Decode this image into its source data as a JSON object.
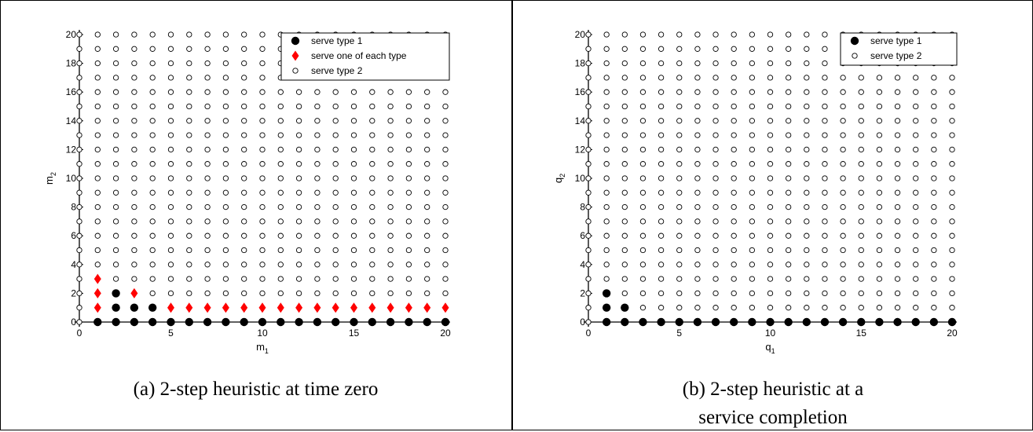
{
  "chart_data": [
    {
      "type": "scatter",
      "panel": "a",
      "caption": "(a) 2-step heuristic at time zero",
      "xlabel": "m",
      "xlabel_sub": "1",
      "ylabel": "m",
      "ylabel_sub": "2",
      "xlim": [
        0,
        20
      ],
      "ylim": [
        0,
        20
      ],
      "xticks": [
        0,
        5,
        10,
        15,
        20
      ],
      "yticks": [
        0,
        2,
        4,
        6,
        8,
        10,
        12,
        14,
        16,
        18,
        20
      ],
      "grid": false,
      "legend_position": "top-right",
      "colors": {
        "serve type 1": "#000000",
        "serve one of each type": "#ff0000",
        "serve type 2": "#000000"
      },
      "series": [
        {
          "name": "serve type 1",
          "marker": "filled-circle",
          "points": [
            [
              2,
              1
            ],
            [
              3,
              1
            ],
            [
              4,
              1
            ],
            [
              2,
              2
            ],
            [
              1,
              0
            ],
            [
              2,
              0
            ],
            [
              3,
              0
            ],
            [
              4,
              0
            ],
            [
              5,
              0
            ],
            [
              6,
              0
            ],
            [
              7,
              0
            ],
            [
              8,
              0
            ],
            [
              9,
              0
            ],
            [
              10,
              0
            ],
            [
              11,
              0
            ],
            [
              12,
              0
            ],
            [
              13,
              0
            ],
            [
              14,
              0
            ],
            [
              15,
              0
            ],
            [
              16,
              0
            ],
            [
              17,
              0
            ],
            [
              18,
              0
            ],
            [
              19,
              0
            ],
            [
              20,
              0
            ]
          ]
        },
        {
          "name": "serve one of each type",
          "marker": "red-diamond",
          "points": [
            [
              1,
              1
            ],
            [
              1,
              2
            ],
            [
              1,
              3
            ],
            [
              3,
              2
            ],
            [
              5,
              1
            ],
            [
              6,
              1
            ],
            [
              7,
              1
            ],
            [
              8,
              1
            ],
            [
              9,
              1
            ],
            [
              10,
              1
            ],
            [
              11,
              1
            ],
            [
              12,
              1
            ],
            [
              13,
              1
            ],
            [
              14,
              1
            ],
            [
              15,
              1
            ],
            [
              16,
              1
            ],
            [
              17,
              1
            ],
            [
              18,
              1
            ],
            [
              19,
              1
            ],
            [
              20,
              1
            ]
          ]
        },
        {
          "name": "serve type 2",
          "marker": "open-circle",
          "points": "all remaining integer grid points (m1, m2) with 0 ≤ m1 ≤ 20, 0 ≤ m2 ≤ 20"
        }
      ]
    },
    {
      "type": "scatter",
      "panel": "b",
      "caption_line1": "(b) 2-step heuristic at a",
      "caption_line2": "service completion",
      "xlabel": "q",
      "xlabel_sub": "1",
      "ylabel": "q",
      "ylabel_sub": "2",
      "xlim": [
        0,
        20
      ],
      "ylim": [
        0,
        20
      ],
      "xticks": [
        0,
        5,
        10,
        15,
        20
      ],
      "yticks": [
        0,
        2,
        4,
        6,
        8,
        10,
        12,
        14,
        16,
        18,
        20
      ],
      "grid": false,
      "legend_position": "top-right",
      "colors": {
        "serve type 1": "#000000",
        "serve type 2": "#000000"
      },
      "series": [
        {
          "name": "serve type 1",
          "marker": "filled-circle",
          "points": [
            [
              1,
              1
            ],
            [
              2,
              1
            ],
            [
              1,
              2
            ],
            [
              1,
              0
            ],
            [
              2,
              0
            ],
            [
              3,
              0
            ],
            [
              4,
              0
            ],
            [
              5,
              0
            ],
            [
              6,
              0
            ],
            [
              7,
              0
            ],
            [
              8,
              0
            ],
            [
              9,
              0
            ],
            [
              10,
              0
            ],
            [
              11,
              0
            ],
            [
              12,
              0
            ],
            [
              13,
              0
            ],
            [
              14,
              0
            ],
            [
              15,
              0
            ],
            [
              16,
              0
            ],
            [
              17,
              0
            ],
            [
              18,
              0
            ],
            [
              19,
              0
            ],
            [
              20,
              0
            ]
          ]
        },
        {
          "name": "serve type 2",
          "marker": "open-circle",
          "points": "all remaining integer grid points (q1, q2) with 0 ≤ q1 ≤ 20, 0 ≤ q2 ≤ 20"
        }
      ]
    }
  ]
}
